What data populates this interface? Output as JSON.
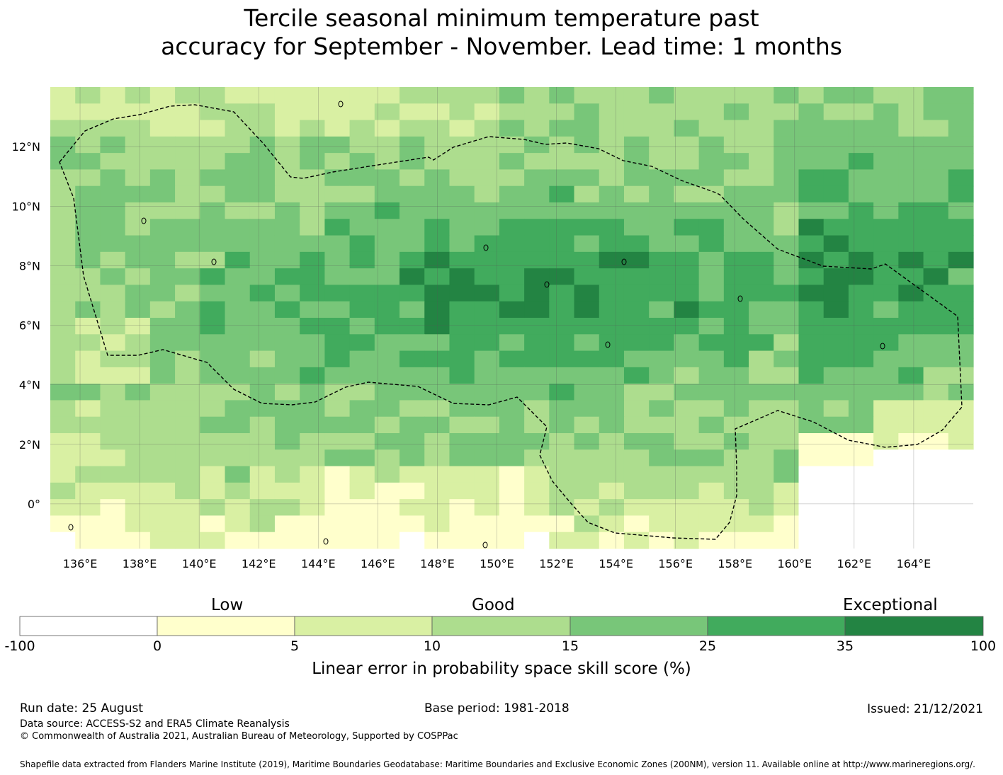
{
  "title": {
    "line1": "Tercile seasonal minimum temperature past",
    "line2": "accuracy for September - November. Lead time: 1 months"
  },
  "map": {
    "x_ticks": [
      "136°E",
      "138°E",
      "140°E",
      "142°E",
      "144°E",
      "146°E",
      "148°E",
      "150°E",
      "152°E",
      "154°E",
      "156°E",
      "158°E",
      "160°E",
      "162°E",
      "164°E"
    ],
    "y_ticks": [
      "12°N",
      "10°N",
      "8°N",
      "6°N",
      "4°N",
      "2°N",
      "0°"
    ],
    "lon_range": [
      135,
      166
    ],
    "lat_range": [
      -1.5,
      14
    ],
    "grid": true,
    "boundary_style": "dashed"
  },
  "colorbar": {
    "categories": {
      "low": "Low",
      "good": "Good",
      "exceptional": "Exceptional"
    },
    "ticks": [
      "-100",
      "0",
      "5",
      "10",
      "15",
      "25",
      "35",
      "100"
    ],
    "colors": [
      "#ffffff",
      "#ffffcc",
      "#d9f0a3",
      "#addd8e",
      "#78c679",
      "#41ab5d",
      "#238443"
    ],
    "label": "Linear error in probability space skill score (%)"
  },
  "footer": {
    "run_date": "Run date: 25 August",
    "base_period": "Base period: 1981-2018",
    "issued": "Issued: 21/12/2021",
    "data_source": "Data source: ACCESS-S2 and ERA5 Climate Reanalysis",
    "copyright": "© Commonwealth of Australia 2021, Australian Bureau of Meteorology, Supported by COSPPac",
    "shapefile": "Shapefile data extracted from Flanders Marine Institute (2019), Maritime Boundaries Geodatabase: Maritime Boundaries and Exclusive Economic Zones (200NM), version 11. Available online at http://www.marineregions.org/."
  }
}
